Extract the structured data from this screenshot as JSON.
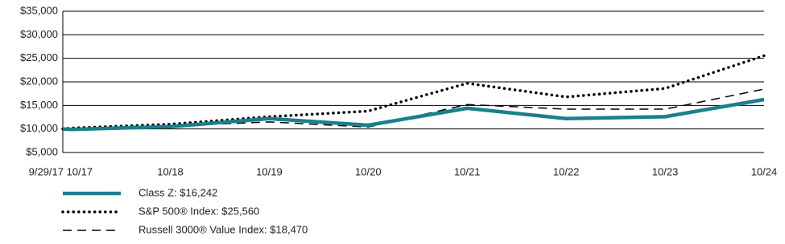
{
  "chart_data": {
    "type": "line",
    "x": [
      "9/29/17",
      "10/17",
      "10/18",
      "10/19",
      "10/20",
      "10/21",
      "10/22",
      "10/23",
      "10/24"
    ],
    "series": [
      {
        "name": "Class Z: $16,242",
        "color": "#1b7f8c",
        "style": "solid",
        "values": [
          10000,
          9900,
          10500,
          12200,
          10800,
          14400,
          12200,
          12600,
          16242
        ]
      },
      {
        "name": "S&P 500® Index: $25,560",
        "color": "#000000",
        "style": "dotted",
        "values": [
          10000,
          10200,
          11000,
          12600,
          13800,
          19700,
          16800,
          18600,
          25560
        ]
      },
      {
        "name": "Russell 3000® Value Index: $18,470",
        "color": "#000000",
        "style": "dashed",
        "values": [
          10000,
          10100,
          10600,
          11500,
          10400,
          15200,
          14200,
          14200,
          18470
        ]
      }
    ],
    "ylim": [
      5000,
      35000
    ],
    "yticks": [
      {
        "value": 5000,
        "label": "$5,000"
      },
      {
        "value": 10000,
        "label": "$10,000"
      },
      {
        "value": 15000,
        "label": "$15,000"
      },
      {
        "value": 20000,
        "label": "$20,000"
      },
      {
        "value": 25000,
        "label": "$25,000"
      },
      {
        "value": 30000,
        "label": "$30,000"
      },
      {
        "value": 35000,
        "label": "$35,000"
      }
    ],
    "grid": true
  }
}
